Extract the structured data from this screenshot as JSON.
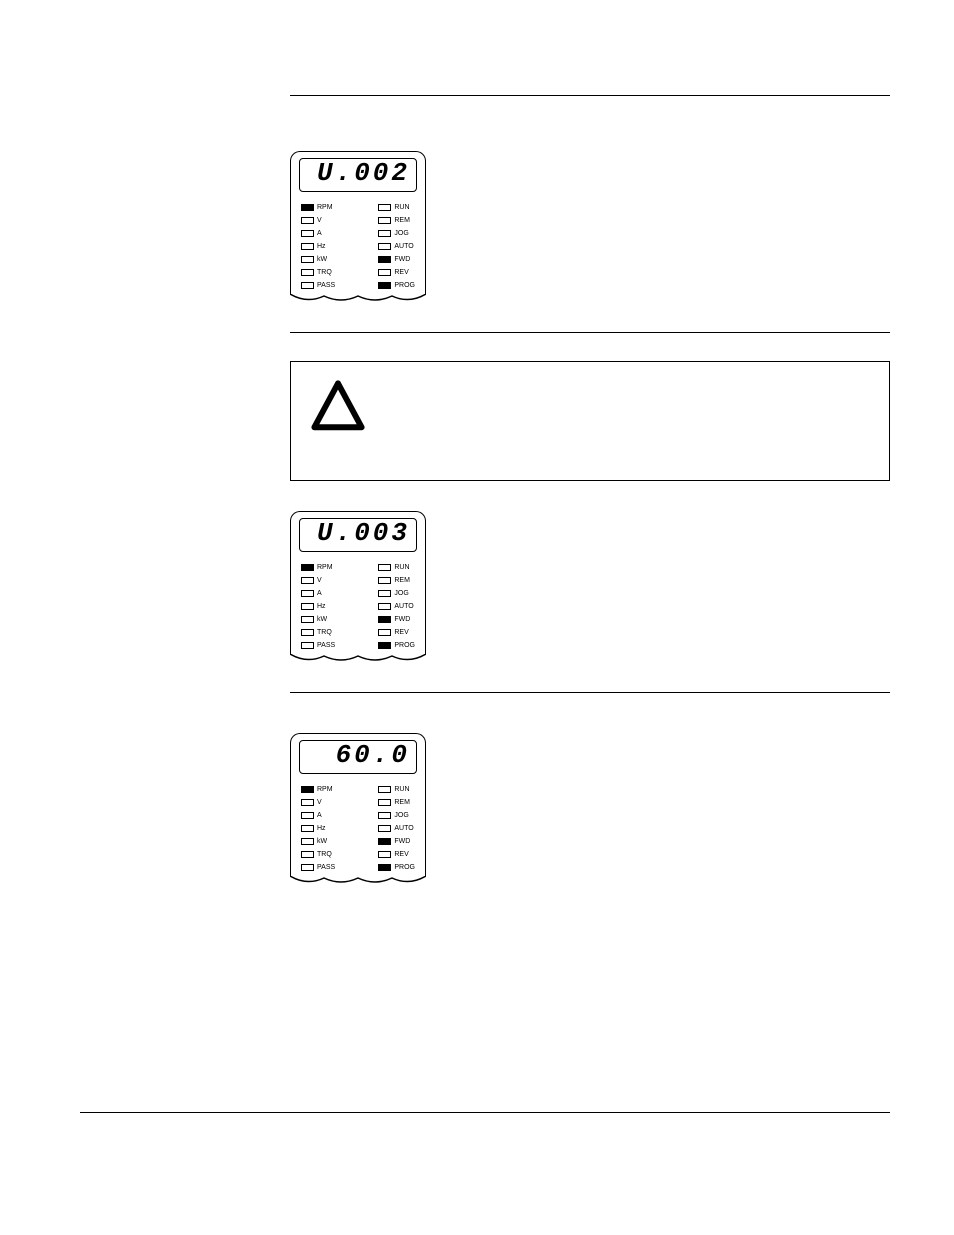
{
  "panels": [
    {
      "display": "U.002",
      "left": [
        {
          "l": "RPM",
          "on": true
        },
        {
          "l": "V",
          "on": false
        },
        {
          "l": "A",
          "on": false
        },
        {
          "l": "Hz",
          "on": false
        },
        {
          "l": "kW",
          "on": false
        },
        {
          "l": "TRQ",
          "on": false
        },
        {
          "l": "PASS",
          "on": false
        }
      ],
      "right": [
        {
          "l": "RUN",
          "on": false
        },
        {
          "l": "REM",
          "on": false
        },
        {
          "l": "JOG",
          "on": false
        },
        {
          "l": "AUTO",
          "on": false
        },
        {
          "l": "FWD",
          "on": true
        },
        {
          "l": "REV",
          "on": false
        },
        {
          "l": "PROG",
          "on": true
        }
      ]
    },
    {
      "display": "U.003",
      "left": [
        {
          "l": "RPM",
          "on": true
        },
        {
          "l": "V",
          "on": false
        },
        {
          "l": "A",
          "on": false
        },
        {
          "l": "Hz",
          "on": false
        },
        {
          "l": "kW",
          "on": false
        },
        {
          "l": "TRQ",
          "on": false
        },
        {
          "l": "PASS",
          "on": false
        }
      ],
      "right": [
        {
          "l": "RUN",
          "on": false
        },
        {
          "l": "REM",
          "on": false
        },
        {
          "l": "JOG",
          "on": false
        },
        {
          "l": "AUTO",
          "on": false
        },
        {
          "l": "FWD",
          "on": true
        },
        {
          "l": "REV",
          "on": false
        },
        {
          "l": "PROG",
          "on": true
        }
      ]
    },
    {
      "display": "60.0",
      "left": [
        {
          "l": "RPM",
          "on": true
        },
        {
          "l": "V",
          "on": false
        },
        {
          "l": "A",
          "on": false
        },
        {
          "l": "Hz",
          "on": false
        },
        {
          "l": "kW",
          "on": false
        },
        {
          "l": "TRQ",
          "on": false
        },
        {
          "l": "PASS",
          "on": false
        }
      ],
      "right": [
        {
          "l": "RUN",
          "on": false
        },
        {
          "l": "REM",
          "on": false
        },
        {
          "l": "JOG",
          "on": false
        },
        {
          "l": "AUTO",
          "on": false
        },
        {
          "l": "FWD",
          "on": true
        },
        {
          "l": "REV",
          "on": false
        },
        {
          "l": "PROG",
          "on": true
        }
      ]
    }
  ],
  "colors": {
    "stroke": "#000000",
    "bg": "#ffffff"
  }
}
